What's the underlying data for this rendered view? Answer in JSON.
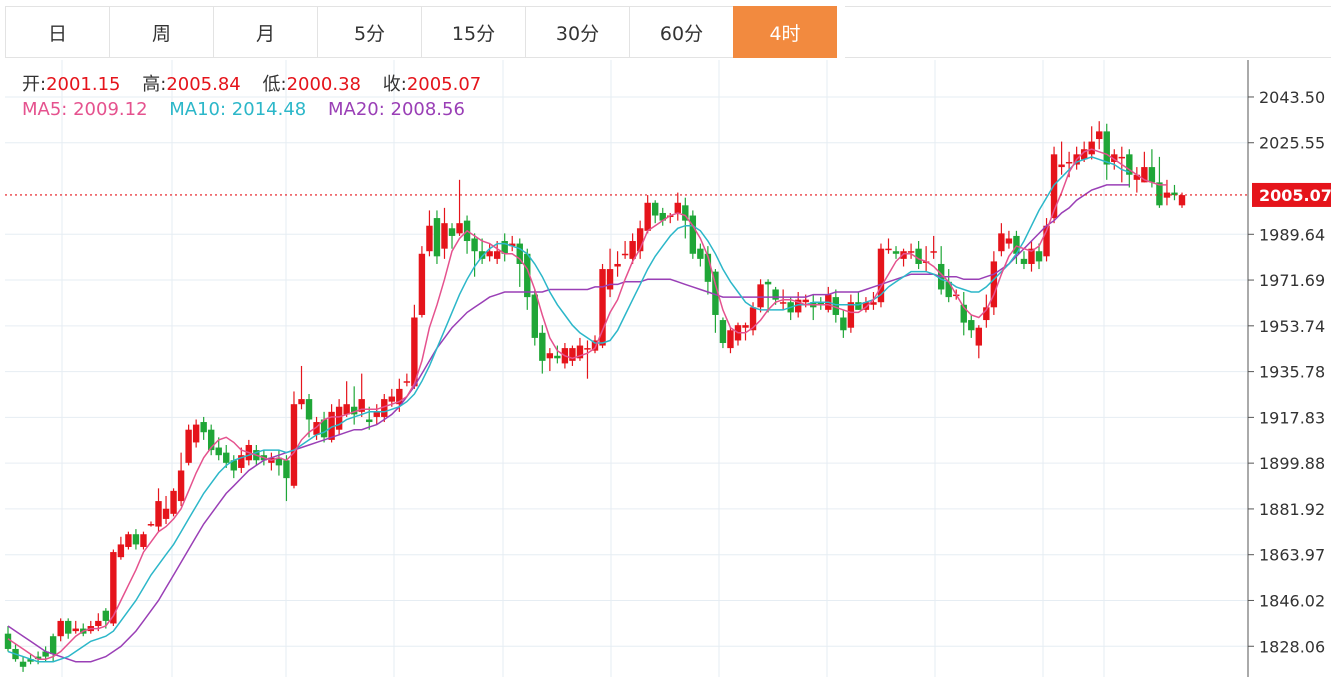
{
  "tabs": [
    {
      "label": "日",
      "active": false
    },
    {
      "label": "周",
      "active": false
    },
    {
      "label": "月",
      "active": false
    },
    {
      "label": "5分",
      "active": false
    },
    {
      "label": "15分",
      "active": false
    },
    {
      "label": "30分",
      "active": false
    },
    {
      "label": "60分",
      "active": false
    },
    {
      "label": "4时",
      "active": true
    }
  ],
  "info": {
    "open_label": "开:",
    "open": "2001.15",
    "high_label": "高:",
    "high": "2005.84",
    "low_label": "低:",
    "low": "2000.38",
    "close_label": "收:",
    "close": "2005.07",
    "ma5": "MA5: 2009.12",
    "ma10": "MA10: 2014.48",
    "ma20": "MA20: 2008.56"
  },
  "colors": {
    "up": "#e5141b",
    "down": "#1fa637",
    "ma5": "#e5528e",
    "ma10": "#2cb7c9",
    "ma20": "#9a3fb6",
    "grid": "#e6edf3",
    "active_tab": "#f28a3f"
  },
  "chart_data": {
    "type": "candlestick",
    "y_ticks": [
      "2043.50",
      "2025.55",
      "1989.64",
      "1971.69",
      "1953.74",
      "1935.78",
      "1917.83",
      "1899.88",
      "1881.92",
      "1863.97",
      "1846.02",
      "1828.06"
    ],
    "ylim": [
      1816,
      2058
    ],
    "current_price": "2005.07",
    "candles": [
      [
        1833,
        1827,
        1836,
        1826
      ],
      [
        1827,
        1823,
        1829,
        1822
      ],
      [
        1822,
        1820,
        1824,
        1818
      ],
      [
        1823,
        1822,
        1825,
        1821
      ],
      [
        1824,
        1823,
        1826,
        1821
      ],
      [
        1826,
        1824,
        1828,
        1822
      ],
      [
        1832,
        1825,
        1833,
        1822
      ],
      [
        1832,
        1838,
        1839,
        1830
      ],
      [
        1838,
        1833,
        1839,
        1831
      ],
      [
        1834,
        1835,
        1838,
        1833
      ],
      [
        1835,
        1833,
        1837,
        1832
      ],
      [
        1834,
        1836,
        1838,
        1833
      ],
      [
        1836,
        1838,
        1841,
        1834
      ],
      [
        1842,
        1838,
        1843,
        1835
      ],
      [
        1837,
        1865,
        1866,
        1836
      ],
      [
        1863,
        1868,
        1871,
        1862
      ],
      [
        1867,
        1872,
        1873,
        1866
      ],
      [
        1872,
        1868,
        1874,
        1866
      ],
      [
        1867,
        1872,
        1873,
        1866
      ],
      [
        1876,
        1876,
        1877,
        1875
      ],
      [
        1875,
        1885,
        1890,
        1873
      ],
      [
        1878,
        1882,
        1887,
        1876
      ],
      [
        1880,
        1889,
        1890,
        1879
      ],
      [
        1885,
        1897,
        1904,
        1883
      ],
      [
        1900,
        1913,
        1915,
        1899
      ],
      [
        1908,
        1915,
        1917,
        1906
      ],
      [
        1916,
        1912,
        1918,
        1909
      ],
      [
        1913,
        1905,
        1915,
        1903
      ],
      [
        1906,
        1903,
        1910,
        1901
      ],
      [
        1904,
        1900,
        1907,
        1898
      ],
      [
        1901,
        1897,
        1903,
        1894
      ],
      [
        1898,
        1903,
        1906,
        1896
      ],
      [
        1901,
        1907,
        1909,
        1899
      ],
      [
        1905,
        1901,
        1907,
        1899
      ],
      [
        1903,
        1901,
        1905,
        1899
      ],
      [
        1900,
        1902,
        1904,
        1897
      ],
      [
        1902,
        1899,
        1905,
        1895
      ],
      [
        1901,
        1894,
        1903,
        1885
      ],
      [
        1891,
        1923,
        1928,
        1890
      ],
      [
        1923,
        1925,
        1938,
        1921
      ],
      [
        1925,
        1917,
        1927,
        1910
      ],
      [
        1911,
        1916,
        1918,
        1909
      ],
      [
        1917,
        1910,
        1920,
        1908
      ],
      [
        1909,
        1920,
        1923,
        1908
      ],
      [
        1913,
        1922,
        1925,
        1911
      ],
      [
        1919,
        1923,
        1932,
        1918
      ],
      [
        1922,
        1919,
        1930,
        1915
      ],
      [
        1920,
        1925,
        1935,
        1918
      ],
      [
        1917,
        1916,
        1922,
        1913
      ],
      [
        1918,
        1920,
        1923,
        1915
      ],
      [
        1918,
        1925,
        1927,
        1916
      ],
      [
        1924,
        1926,
        1929,
        1922
      ],
      [
        1923,
        1929,
        1933,
        1920
      ],
      [
        1932,
        1932,
        1935,
        1930
      ],
      [
        1930,
        1957,
        1962,
        1929
      ],
      [
        1958,
        1982,
        1985,
        1957
      ],
      [
        1983,
        1993,
        1999,
        1981
      ],
      [
        1996,
        1981,
        1999,
        1978
      ],
      [
        1984,
        1994,
        2000,
        1980
      ],
      [
        1992,
        1989,
        1994,
        1984
      ],
      [
        1990,
        1994,
        2011,
        1989
      ],
      [
        1995,
        1987,
        1997,
        1982
      ],
      [
        1988,
        1983,
        1990,
        1973
      ],
      [
        1983,
        1980,
        1988,
        1978
      ],
      [
        1981,
        1983,
        1986,
        1979
      ],
      [
        1980,
        1983,
        1987,
        1978
      ],
      [
        1987,
        1982,
        1990,
        1979
      ],
      [
        1985,
        1986,
        1989,
        1983
      ],
      [
        1986,
        1978,
        1988,
        1969
      ],
      [
        1982,
        1965,
        1984,
        1960
      ],
      [
        1966,
        1949,
        1968,
        1946
      ],
      [
        1951,
        1940,
        1954,
        1935
      ],
      [
        1941,
        1943,
        1945,
        1936
      ],
      [
        1942,
        1941,
        1946,
        1939
      ],
      [
        1939,
        1945,
        1947,
        1937
      ],
      [
        1940,
        1945,
        1946,
        1938
      ],
      [
        1941,
        1946,
        1949,
        1940
      ],
      [
        1945,
        1945,
        1948,
        1933
      ],
      [
        1944,
        1948,
        1950,
        1943
      ],
      [
        1946,
        1976,
        1978,
        1945
      ],
      [
        1968,
        1976,
        1984,
        1965
      ],
      [
        1977,
        1978,
        1983,
        1973
      ],
      [
        1982,
        1982,
        1987,
        1980
      ],
      [
        1980,
        1987,
        1990,
        1978
      ],
      [
        1983,
        1992,
        1995,
        1980
      ],
      [
        1991,
        2002,
        2005,
        1990
      ],
      [
        2002,
        1997,
        2003,
        1994
      ],
      [
        1998,
        1995,
        2000,
        1993
      ],
      [
        1997,
        1997,
        1998,
        1994
      ],
      [
        1998,
        2002,
        2006,
        1995
      ],
      [
        2001,
        1995,
        2004,
        1988
      ],
      [
        1997,
        1982,
        1999,
        1980
      ],
      [
        1984,
        1980,
        1986,
        1977
      ],
      [
        1982,
        1971,
        1985,
        1966
      ],
      [
        1975,
        1958,
        1976,
        1951
      ],
      [
        1956,
        1947,
        1957,
        1945
      ],
      [
        1945,
        1952,
        1953,
        1943
      ],
      [
        1948,
        1954,
        1955,
        1946
      ],
      [
        1953,
        1954,
        1955,
        1948
      ],
      [
        1952,
        1961,
        1963,
        1950
      ],
      [
        1961,
        1970,
        1972,
        1959
      ],
      [
        1971,
        1970,
        1972,
        1959
      ],
      [
        1968,
        1964,
        1969,
        1962
      ],
      [
        1963,
        1963,
        1968,
        1960
      ],
      [
        1963,
        1959,
        1965,
        1956
      ],
      [
        1959,
        1964,
        1967,
        1957
      ],
      [
        1963,
        1964,
        1966,
        1961
      ],
      [
        1963,
        1961,
        1966,
        1956
      ],
      [
        1963,
        1962,
        1965,
        1960
      ],
      [
        1960,
        1966,
        1969,
        1959
      ],
      [
        1965,
        1958,
        1968,
        1955
      ],
      [
        1957,
        1952,
        1960,
        1949
      ],
      [
        1953,
        1963,
        1966,
        1951
      ],
      [
        1963,
        1960,
        1967,
        1960
      ],
      [
        1960,
        1963,
        1965,
        1959
      ],
      [
        1962,
        1963,
        1967,
        1960
      ],
      [
        1963,
        1984,
        1986,
        1961
      ],
      [
        1984,
        1984,
        1988,
        1982
      ],
      [
        1983,
        1982,
        1985,
        1980
      ],
      [
        1980,
        1983,
        1984,
        1977
      ],
      [
        1983,
        1983,
        1986,
        1980
      ],
      [
        1984,
        1978,
        1987,
        1976
      ],
      [
        1979,
        1979,
        1985,
        1975
      ],
      [
        1983,
        1983,
        1989,
        1980
      ],
      [
        1978,
        1968,
        1985,
        1966
      ],
      [
        1971,
        1965,
        1976,
        1963
      ],
      [
        1966,
        1966,
        1968,
        1964
      ],
      [
        1962,
        1955,
        1967,
        1950
      ],
      [
        1956,
        1952,
        1958,
        1949
      ],
      [
        1946,
        1953,
        1954,
        1941
      ],
      [
        1956,
        1961,
        1966,
        1953
      ],
      [
        1961,
        1979,
        1983,
        1958
      ],
      [
        1983,
        1990,
        1994,
        1981
      ],
      [
        1986,
        1988,
        1991,
        1984
      ],
      [
        1989,
        1982,
        1991,
        1978
      ],
      [
        1980,
        1978,
        1983,
        1976
      ],
      [
        1978,
        1984,
        1987,
        1975
      ],
      [
        1983,
        1979,
        1986,
        1976
      ],
      [
        1981,
        1993,
        1996,
        1979
      ],
      [
        1996,
        2021,
        2024,
        1994
      ],
      [
        2016,
        2017,
        2026,
        2013
      ],
      [
        2018,
        2018,
        2022,
        2012
      ],
      [
        2017,
        2021,
        2024,
        2015
      ],
      [
        2019,
        2023,
        2026,
        2018
      ],
      [
        2021,
        2026,
        2032,
        2019
      ],
      [
        2027,
        2030,
        2034,
        2023
      ],
      [
        2030,
        2017,
        2033,
        2011
      ],
      [
        2018,
        2021,
        2023,
        2015
      ],
      [
        2020,
        2020,
        2024,
        2010
      ],
      [
        2021,
        2013,
        2023,
        2008
      ],
      [
        2011,
        2013,
        2016,
        2006
      ],
      [
        2010,
        2016,
        2022,
        2010
      ],
      [
        2016,
        2010,
        2023,
        2008
      ],
      [
        2010,
        2001,
        2020,
        2000
      ],
      [
        2004,
        2006,
        2011,
        2001
      ],
      [
        2006,
        2005,
        2009,
        2003
      ],
      [
        2001,
        2005,
        2006,
        2000
      ]
    ],
    "ma5": [
      1831,
      1829,
      1827,
      1825,
      1823,
      1823,
      1824,
      1826,
      1829,
      1832,
      1834,
      1835,
      1835,
      1836,
      1840,
      1846,
      1852,
      1858,
      1865,
      1869,
      1873,
      1875,
      1878,
      1882,
      1889,
      1896,
      1902,
      1906,
      1909,
      1910,
      1908,
      1905,
      1904,
      1903,
      1902,
      1901,
      1902,
      1901,
      1904,
      1909,
      1912,
      1914,
      1917,
      1918,
      1918,
      1919,
      1920,
      1921,
      1921,
      1921,
      1922,
      1923,
      1924,
      1926,
      1931,
      1940,
      1953,
      1962,
      1972,
      1983,
      1988,
      1991,
      1989,
      1987,
      1986,
      1984,
      1982,
      1982,
      1980,
      1976,
      1968,
      1958,
      1949,
      1944,
      1942,
      1941,
      1942,
      1943,
      1945,
      1952,
      1959,
      1964,
      1972,
      1979,
      1984,
      1991,
      1993,
      1995,
      1997,
      1998,
      1997,
      1993,
      1988,
      1981,
      1970,
      1960,
      1953,
      1951,
      1951,
      1953,
      1956,
      1960,
      1963,
      1964,
      1964,
      1963,
      1962,
      1962,
      1962,
      1962,
      1961,
      1960,
      1959,
      1959,
      1961,
      1964,
      1969,
      1974,
      1979,
      1982,
      1982,
      1980,
      1979,
      1977,
      1974,
      1971,
      1966,
      1961,
      1958,
      1957,
      1960,
      1966,
      1974,
      1981,
      1985,
      1984,
      1983,
      1985,
      1991,
      1999,
      2006,
      2014,
      2019,
      2022,
      2023,
      2022,
      2021,
      2019,
      2017,
      2015,
      2013,
      2011,
      2010,
      2009,
      2009
    ],
    "ma10": [
      1826,
      1825,
      1824,
      1823,
      1822,
      1822,
      1822,
      1823,
      1824,
      1826,
      1828,
      1830,
      1831,
      1832,
      1834,
      1838,
      1842,
      1846,
      1851,
      1856,
      1860,
      1864,
      1868,
      1873,
      1878,
      1883,
      1888,
      1892,
      1896,
      1899,
      1901,
      1902,
      1903,
      1904,
      1905,
      1905,
      1905,
      1904,
      1905,
      1907,
      1909,
      1911,
      1912,
      1914,
      1915,
      1917,
      1918,
      1919,
      1920,
      1920,
      1920,
      1921,
      1922,
      1924,
      1927,
      1932,
      1938,
      1945,
      1952,
      1959,
      1966,
      1972,
      1977,
      1981,
      1984,
      1986,
      1986,
      1985,
      1984,
      1982,
      1978,
      1973,
      1967,
      1962,
      1958,
      1954,
      1951,
      1949,
      1947,
      1947,
      1948,
      1952,
      1958,
      1964,
      1970,
      1976,
      1981,
      1985,
      1989,
      1992,
      1993,
      1993,
      1991,
      1987,
      1982,
      1976,
      1971,
      1967,
      1963,
      1961,
      1960,
      1960,
      1960,
      1960,
      1961,
      1962,
      1962,
      1963,
      1963,
      1963,
      1962,
      1962,
      1962,
      1962,
      1963,
      1964,
      1966,
      1969,
      1971,
      1973,
      1975,
      1975,
      1975,
      1974,
      1972,
      1971,
      1969,
      1968,
      1967,
      1967,
      1969,
      1972,
      1975,
      1978,
      1982,
      1987,
      1993,
      1999,
      2004,
      2009,
      2012,
      2015,
      2018,
      2019,
      2020,
      2019,
      2018,
      2017,
      2015,
      2014
    ],
    "ma20": [
      1836,
      1834,
      1832,
      1830,
      1828,
      1826,
      1825,
      1824,
      1823,
      1822,
      1822,
      1822,
      1823,
      1824,
      1826,
      1828,
      1831,
      1834,
      1838,
      1842,
      1846,
      1851,
      1856,
      1861,
      1866,
      1871,
      1876,
      1880,
      1884,
      1888,
      1891,
      1894,
      1897,
      1899,
      1901,
      1902,
      1903,
      1904,
      1905,
      1906,
      1907,
      1908,
      1909,
      1910,
      1911,
      1912,
      1913,
      1913,
      1914,
      1915,
      1917,
      1919,
      1922,
      1926,
      1930,
      1935,
      1940,
      1945,
      1949,
      1953,
      1956,
      1959,
      1961,
      1963,
      1965,
      1966,
      1967,
      1967,
      1967,
      1967,
      1967,
      1967,
      1968,
      1968,
      1968,
      1968,
      1968,
      1968,
      1969,
      1969,
      1970,
      1970,
      1971,
      1971,
      1971,
      1972,
      1972,
      1972,
      1972,
      1971,
      1970,
      1969,
      1968,
      1967,
      1966,
      1965,
      1965,
      1965,
      1965,
      1965,
      1965,
      1965,
      1965,
      1965,
      1965,
      1965,
      1965,
      1966,
      1966,
      1966,
      1967,
      1967,
      1967,
      1967,
      1968,
      1969,
      1970,
      1971,
      1972,
      1973,
      1974,
      1974,
      1974,
      1974,
      1973,
      1973,
      1973,
      1972,
      1972,
      1972,
      1973,
      1974,
      1976,
      1978,
      1981,
      1984,
      1987,
      1990,
      1993,
      1995,
      1998,
      2000,
      2003,
      2005,
      2007,
      2008,
      2009,
      2009,
      2009,
      2009
    ]
  }
}
